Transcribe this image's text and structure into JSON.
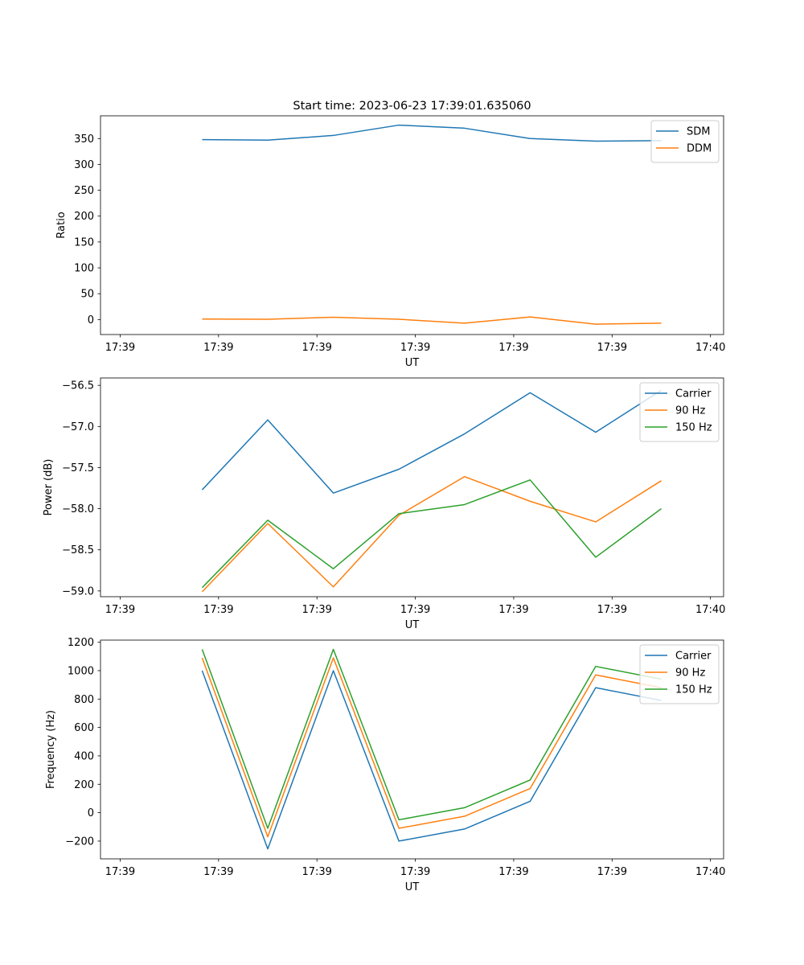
{
  "figure": {
    "title": "Start time: 2023-06-23 17:39:01.635060"
  },
  "chart_data": [
    {
      "type": "line",
      "title": "Start time: 2023-06-23 17:39:01.635060",
      "xlabel": "UT",
      "ylabel": "Ratio",
      "x_tick_labels": [
        "17:39",
        "17:39",
        "17:39",
        "17:39",
        "17:39",
        "17:39",
        "17:40"
      ],
      "x": [
        1,
        2,
        3,
        4,
        5,
        6,
        7,
        8
      ],
      "xlim": [
        -0.55,
        8.95
      ],
      "xticks": [
        -0.25,
        1.25,
        2.75,
        4.25,
        5.75,
        7.25,
        8.75
      ],
      "yticks": [
        0,
        50,
        100,
        150,
        200,
        250,
        300,
        350
      ],
      "ylim": [
        -29,
        394
      ],
      "grid": false,
      "legend": "top-right",
      "series": [
        {
          "name": "SDM",
          "color": "#1f77b4",
          "values": [
            348,
            347,
            356,
            376,
            370,
            350,
            345,
            346
          ]
        },
        {
          "name": "DDM",
          "color": "#ff7f0e",
          "values": [
            1,
            0.5,
            4.5,
            0.5,
            -7,
            5,
            -9,
            -7
          ]
        }
      ]
    },
    {
      "type": "line",
      "xlabel": "UT",
      "ylabel": "Power (dB)",
      "x_tick_labels": [
        "17:39",
        "17:39",
        "17:39",
        "17:39",
        "17:39",
        "17:39",
        "17:40"
      ],
      "x": [
        1,
        2,
        3,
        4,
        5,
        6,
        7,
        8
      ],
      "xlim": [
        -0.55,
        8.95
      ],
      "xticks": [
        -0.25,
        1.25,
        2.75,
        4.25,
        5.75,
        7.25,
        8.75
      ],
      "yticks": [
        -59.0,
        -58.5,
        -58.0,
        -57.5,
        -57.0,
        -56.5
      ],
      "ytick_labels": [
        "−59.0",
        "−58.5",
        "−58.0",
        "−57.5",
        "−57.0",
        "−56.5"
      ],
      "ylim": [
        -59.07,
        -56.41
      ],
      "grid": false,
      "legend": "top-right",
      "series": [
        {
          "name": "Carrier",
          "color": "#1f77b4",
          "values": [
            -57.77,
            -56.92,
            -57.81,
            -57.52,
            -57.09,
            -56.59,
            -57.07,
            -56.56
          ]
        },
        {
          "name": "90 Hz",
          "color": "#ff7f0e",
          "values": [
            -59.01,
            -58.18,
            -58.95,
            -58.08,
            -57.61,
            -57.91,
            -58.16,
            -57.66
          ]
        },
        {
          "name": "150 Hz",
          "color": "#2ca02c",
          "values": [
            -58.96,
            -58.14,
            -58.73,
            -58.06,
            -57.95,
            -57.65,
            -58.59,
            -58.0
          ]
        }
      ]
    },
    {
      "type": "line",
      "xlabel": "UT",
      "ylabel": "Frequency (Hz)",
      "x_tick_labels": [
        "17:39",
        "17:39",
        "17:39",
        "17:39",
        "17:39",
        "17:39",
        "17:40"
      ],
      "x": [
        1,
        2,
        3,
        4,
        5,
        6,
        7,
        8
      ],
      "xlim": [
        -0.55,
        8.95
      ],
      "xticks": [
        -0.25,
        1.25,
        2.75,
        4.25,
        5.75,
        7.25,
        8.75
      ],
      "yticks": [
        -200,
        0,
        200,
        400,
        600,
        800,
        1000,
        1200
      ],
      "ytick_labels": [
        "−200",
        "0",
        "200",
        "400",
        "600",
        "800",
        "1000",
        "1200"
      ],
      "ylim": [
        -325,
        1215
      ],
      "grid": false,
      "legend": "top-right",
      "series": [
        {
          "name": "Carrier",
          "color": "#1f77b4",
          "values": [
            1000,
            -255,
            1000,
            -200,
            -115,
            80,
            880,
            790
          ]
        },
        {
          "name": "90 Hz",
          "color": "#ff7f0e",
          "values": [
            1090,
            -170,
            1090,
            -110,
            -25,
            170,
            970,
            880
          ]
        },
        {
          "name": "150 Hz",
          "color": "#2ca02c",
          "values": [
            1150,
            -110,
            1150,
            -50,
            35,
            230,
            1030,
            940
          ]
        }
      ]
    }
  ]
}
